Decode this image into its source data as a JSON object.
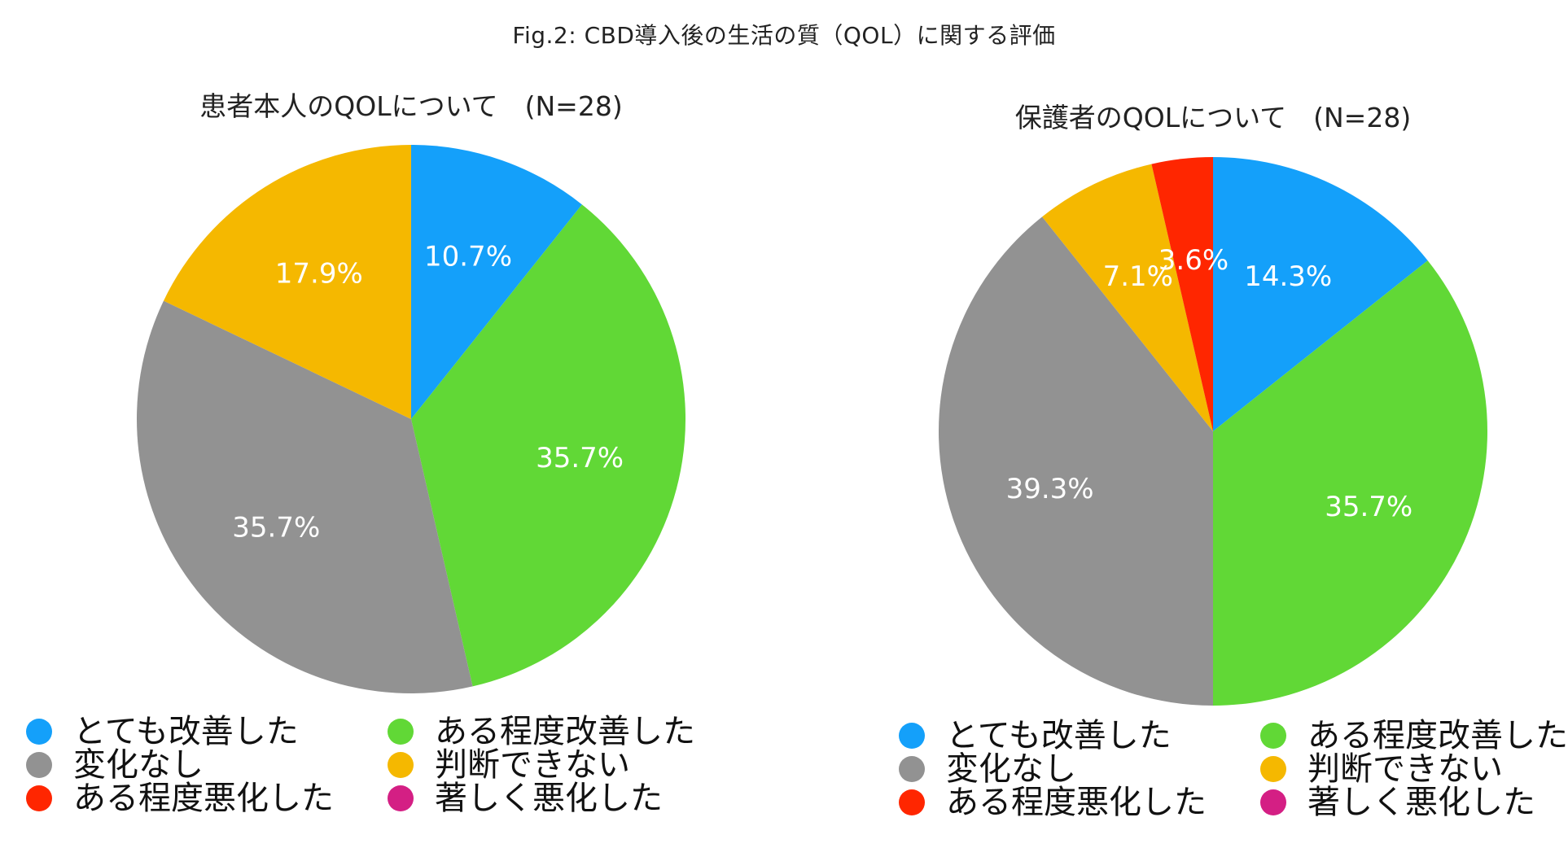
{
  "figure_title": "Fig.2: CBD導入後の生活の質（QOL）に関する評価",
  "chart_data": [
    {
      "type": "pie",
      "title": "患者本人のQOLについて　(N=28)",
      "slices": [
        {
          "label": "とても改善した",
          "value": 10.7,
          "display": "10.7%",
          "color": "#14a0fa"
        },
        {
          "label": "ある程度改善した",
          "value": 35.7,
          "display": "35.7%",
          "color": "#61d836"
        },
        {
          "label": "変化なし",
          "value": 35.7,
          "display": "35.7%",
          "color": "#929292"
        },
        {
          "label": "判断できない",
          "value": 17.9,
          "display": "17.9%",
          "color": "#f5b800"
        }
      ],
      "legend": [
        {
          "label": "とても改善した",
          "color": "#14a0fa"
        },
        {
          "label": "ある程度改善した",
          "color": "#61d836"
        },
        {
          "label": "変化なし",
          "color": "#929292"
        },
        {
          "label": "判断できない",
          "color": "#f5b800"
        },
        {
          "label": "ある程度悪化した",
          "color": "#ff2600"
        },
        {
          "label": "著しく悪化した",
          "color": "#d41f84"
        }
      ],
      "legend_position": "bottom"
    },
    {
      "type": "pie",
      "title": "保護者のQOLについて　(N=28)",
      "slices": [
        {
          "label": "とても改善した",
          "value": 14.3,
          "display": "14.3%",
          "color": "#14a0fa"
        },
        {
          "label": "ある程度改善した",
          "value": 35.7,
          "display": "35.7%",
          "color": "#61d836"
        },
        {
          "label": "変化なし",
          "value": 39.3,
          "display": "39.3%",
          "color": "#929292"
        },
        {
          "label": "判断できない",
          "value": 7.1,
          "display": "7.1%",
          "color": "#f5b800"
        },
        {
          "label": "ある程度悪化した",
          "value": 3.6,
          "display": "3.6%",
          "color": "#ff2600"
        }
      ],
      "legend": [
        {
          "label": "とても改善した",
          "color": "#14a0fa"
        },
        {
          "label": "ある程度改善した",
          "color": "#61d836"
        },
        {
          "label": "変化なし",
          "color": "#929292"
        },
        {
          "label": "判断できない",
          "color": "#f5b800"
        },
        {
          "label": "ある程度悪化した",
          "color": "#ff2600"
        },
        {
          "label": "著しく悪化した",
          "color": "#d41f84"
        }
      ],
      "legend_position": "bottom"
    }
  ]
}
